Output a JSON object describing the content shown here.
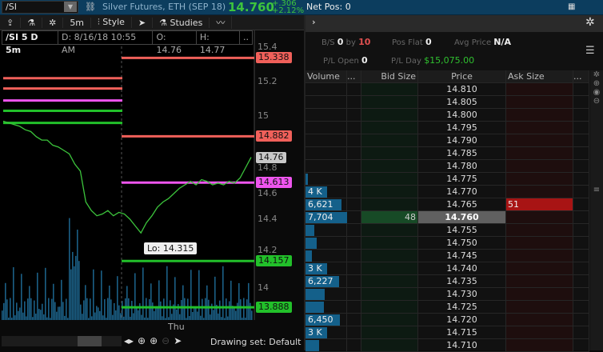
{
  "header": {
    "symbol": "/SI",
    "title": "Silver Futures, ETH (SEP 18)",
    "last": "14.760",
    "change": "+.306",
    "change_pct": "+2.12%",
    "net_pos": "Net Pos: 0"
  },
  "toolbar": {
    "interval": "5m",
    "style": "Style",
    "studies": "Studies"
  },
  "chart_info": {
    "symbol": "/SI 5 D 5m",
    "date": "D: 8/16/18 10:55 AM",
    "open": "O: 14.76",
    "high": "H: 14.77",
    "more": ".."
  },
  "chart": {
    "price_axis": [
      "15.4",
      "15.2",
      "15",
      "14.8",
      "14.6",
      "14.4",
      "14.2",
      "14"
    ],
    "x_label": "Thu",
    "low_label": "Lo: 14.315",
    "last_label": "14.76",
    "levels": [
      {
        "price": 15.338,
        "label": "15.338",
        "color": "#f0605a"
      },
      {
        "price": 14.882,
        "label": "14.882",
        "color": "#f0605a"
      },
      {
        "price": 14.613,
        "label": "14.613",
        "color": "#ee55ee"
      },
      {
        "price": 14.157,
        "label": "14.157",
        "color": "#22c02a"
      },
      {
        "price": 13.888,
        "label": "13.888",
        "color": "#22c02a"
      }
    ],
    "left_levels": [
      {
        "price": 15.22,
        "color": "#f0605a"
      },
      {
        "price": 15.16,
        "color": "#f0605a"
      },
      {
        "price": 15.09,
        "color": "#ee55ee"
      },
      {
        "price": 15.03,
        "color": "#22c02a"
      },
      {
        "price": 14.96,
        "color": "#22c02a"
      }
    ],
    "price_path": [
      14.97,
      14.96,
      14.95,
      14.94,
      14.92,
      14.91,
      14.88,
      14.86,
      14.86,
      14.83,
      14.82,
      14.8,
      14.78,
      14.72,
      14.68,
      14.5,
      14.45,
      14.42,
      14.43,
      14.45,
      14.42,
      14.44,
      14.43,
      14.4,
      14.36,
      14.32,
      14.38,
      14.42,
      14.47,
      14.5,
      14.52,
      14.55,
      14.58,
      14.6,
      14.62,
      14.6,
      14.63,
      14.62,
      14.6,
      14.61,
      14.6,
      14.62,
      14.61,
      14.64,
      14.7,
      14.76
    ]
  },
  "bottom": {
    "drawing_set": "Drawing set: Default"
  },
  "dom": {
    "bs": "B/S",
    "bs_val": "0",
    "by": "by",
    "by_val": "10",
    "pos_flat": "Pos Flat",
    "pos_flat_val": "0",
    "avg_price": "Avg Price",
    "avg_price_val": "N/A",
    "pl_open": "P/L Open",
    "pl_open_val": "0",
    "pl_day": "P/L Day",
    "pl_day_val": "$15,075.00",
    "columns": [
      "Volume",
      "...",
      "Bid Size",
      "Price",
      "Ask Size",
      "..."
    ],
    "rows": [
      {
        "price": "14.810",
        "vol": "",
        "vfrac": 0,
        "bid": "",
        "ask": ""
      },
      {
        "price": "14.805",
        "vol": "",
        "vfrac": 0,
        "bid": "",
        "ask": ""
      },
      {
        "price": "14.800",
        "vol": "",
        "vfrac": 0,
        "bid": "",
        "ask": ""
      },
      {
        "price": "14.795",
        "vol": "",
        "vfrac": 0,
        "bid": "",
        "ask": ""
      },
      {
        "price": "14.790",
        "vol": "",
        "vfrac": 0,
        "bid": "",
        "ask": ""
      },
      {
        "price": "14.785",
        "vol": "",
        "vfrac": 0,
        "bid": "",
        "ask": ""
      },
      {
        "price": "14.780",
        "vol": "",
        "vfrac": 0,
        "bid": "",
        "ask": ""
      },
      {
        "price": "14.775",
        "vol": "",
        "vfrac": 0.05,
        "bid": "",
        "ask": ""
      },
      {
        "price": "14.770",
        "vol": "4 K",
        "vfrac": 0.52,
        "bid": "",
        "ask": ""
      },
      {
        "price": "14.765",
        "vol": "6,621",
        "vfrac": 0.87,
        "bid": "",
        "ask": "51"
      },
      {
        "price": "14.760",
        "vol": "7,704",
        "vfrac": 1.0,
        "bid": "48",
        "ask": "",
        "current": true
      },
      {
        "price": "14.755",
        "vol": "",
        "vfrac": 0.22,
        "bid": "",
        "ask": ""
      },
      {
        "price": "14.750",
        "vol": "",
        "vfrac": 0.27,
        "bid": "",
        "ask": ""
      },
      {
        "price": "14.745",
        "vol": "",
        "vfrac": 0.16,
        "bid": "",
        "ask": ""
      },
      {
        "price": "14.740",
        "vol": "3 K",
        "vfrac": 0.51,
        "bid": "",
        "ask": ""
      },
      {
        "price": "14.735",
        "vol": "6,227",
        "vfrac": 0.8,
        "bid": "",
        "ask": ""
      },
      {
        "price": "14.730",
        "vol": "",
        "vfrac": 0.47,
        "bid": "",
        "ask": ""
      },
      {
        "price": "14.725",
        "vol": "",
        "vfrac": 0.44,
        "bid": "",
        "ask": ""
      },
      {
        "price": "14.720",
        "vol": "6,450",
        "vfrac": 0.83,
        "bid": "",
        "ask": ""
      },
      {
        "price": "14.715",
        "vol": "3 K",
        "vfrac": 0.51,
        "bid": "",
        "ask": ""
      },
      {
        "price": "14.710",
        "vol": "",
        "vfrac": 0.32,
        "bid": "",
        "ask": ""
      }
    ]
  }
}
